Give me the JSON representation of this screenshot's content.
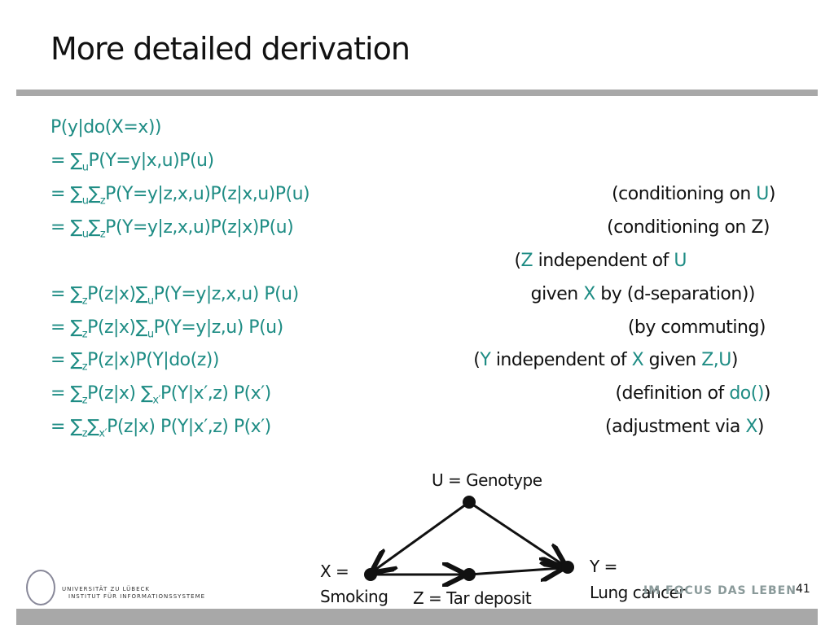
{
  "title": "More detailed derivation",
  "equations": [
    [
      [
        "P(y|do(X=x))"
      ]
    ],
    [
      [
        "=    ∑"
      ],
      [
        "u",
        "s"
      ],
      [
        "P(Y=y|x,u)P(u)"
      ]
    ],
    [
      [
        "=   ∑"
      ],
      [
        "u",
        "s"
      ],
      [
        "∑"
      ],
      [
        "z",
        "s"
      ],
      [
        "P(Y=y|z,x,u)P(z|x,u)P(u)"
      ]
    ],
    [
      [
        "=   ∑"
      ],
      [
        "u",
        "s"
      ],
      [
        "∑"
      ],
      [
        "z",
        "s"
      ],
      [
        "P(Y=y|z,x,u)P(z|x)P(u)"
      ]
    ],
    [],
    [
      [
        "=  ∑"
      ],
      [
        "z",
        "s"
      ],
      [
        "P(z|x)∑"
      ],
      [
        "u",
        "s"
      ],
      [
        "P(Y=y|z,x,u) P(u)"
      ]
    ],
    [
      [
        "=  ∑"
      ],
      [
        "z",
        "s"
      ],
      [
        "P(z|x)∑"
      ],
      [
        "u",
        "s"
      ],
      [
        "P(Y=y|z,u) P(u)"
      ]
    ],
    [
      [
        "=  ∑"
      ],
      [
        "z",
        "s"
      ],
      [
        "P(z|x)P(Y|do(z))"
      ]
    ],
    [
      [
        "=  ∑"
      ],
      [
        "z",
        "s"
      ],
      [
        "P(z|x) ∑"
      ],
      [
        "x′",
        "s"
      ],
      [
        "P(Y|x′,z) P(x′)"
      ]
    ],
    [
      [
        "=  ∑"
      ],
      [
        "z",
        "s"
      ],
      [
        "∑"
      ],
      [
        "x′",
        "s"
      ],
      [
        "P(z|x) P(Y|x′,z) P(x′)"
      ]
    ]
  ],
  "notes": [
    {
      "line": 1,
      "segments": [
        [
          "(conditioning on "
        ],
        [
          "U",
          "t"
        ],
        [
          ")"
        ]
      ]
    },
    {
      "line": 2,
      "segments": [
        [
          "(conditioning on Z)"
        ]
      ]
    },
    {
      "line": 3,
      "segments": [
        [
          "("
        ],
        [
          "Z",
          "t"
        ],
        [
          " independent of "
        ],
        [
          "U",
          "t"
        ]
      ]
    },
    {
      "line": 4,
      "segments": [
        [
          "given "
        ],
        [
          "X",
          "t"
        ],
        [
          " by (d-separation))"
        ]
      ]
    },
    {
      "line": 5,
      "segments": [
        [
          "(by  commuting)"
        ]
      ]
    },
    {
      "line": 6,
      "segments": [
        [
          "("
        ],
        [
          "Y",
          "t"
        ],
        [
          " independent of "
        ],
        [
          "X",
          "t"
        ],
        [
          " given "
        ],
        [
          "Z,U",
          "t"
        ],
        [
          ")"
        ]
      ]
    },
    {
      "line": 7,
      "segments": [
        [
          "(definition of "
        ],
        [
          "do()",
          "t"
        ],
        [
          ")"
        ]
      ]
    },
    {
      "line": 8,
      "segments": [
        [
          "(adjustment via "
        ],
        [
          "X",
          "t"
        ],
        [
          ")"
        ]
      ]
    }
  ],
  "diagram": {
    "u_label": "U = Genotype",
    "x_label_1": "X =",
    "x_label_2": "Smoking",
    "z_label": "Z = Tar deposit",
    "y_label_1": "Y =",
    "y_label_2": "Lung cancer"
  },
  "footer": {
    "university": "UNIVERSITÄT ZU LÜBECK",
    "institute": "INSTITUT FÜR INFORMATIONSSYSTEME",
    "slogan": "IM FOCUS DAS LEBEN",
    "page_number": "41"
  },
  "colors": {
    "accent": "#1e8c84",
    "bar": "#a8a8a8"
  }
}
